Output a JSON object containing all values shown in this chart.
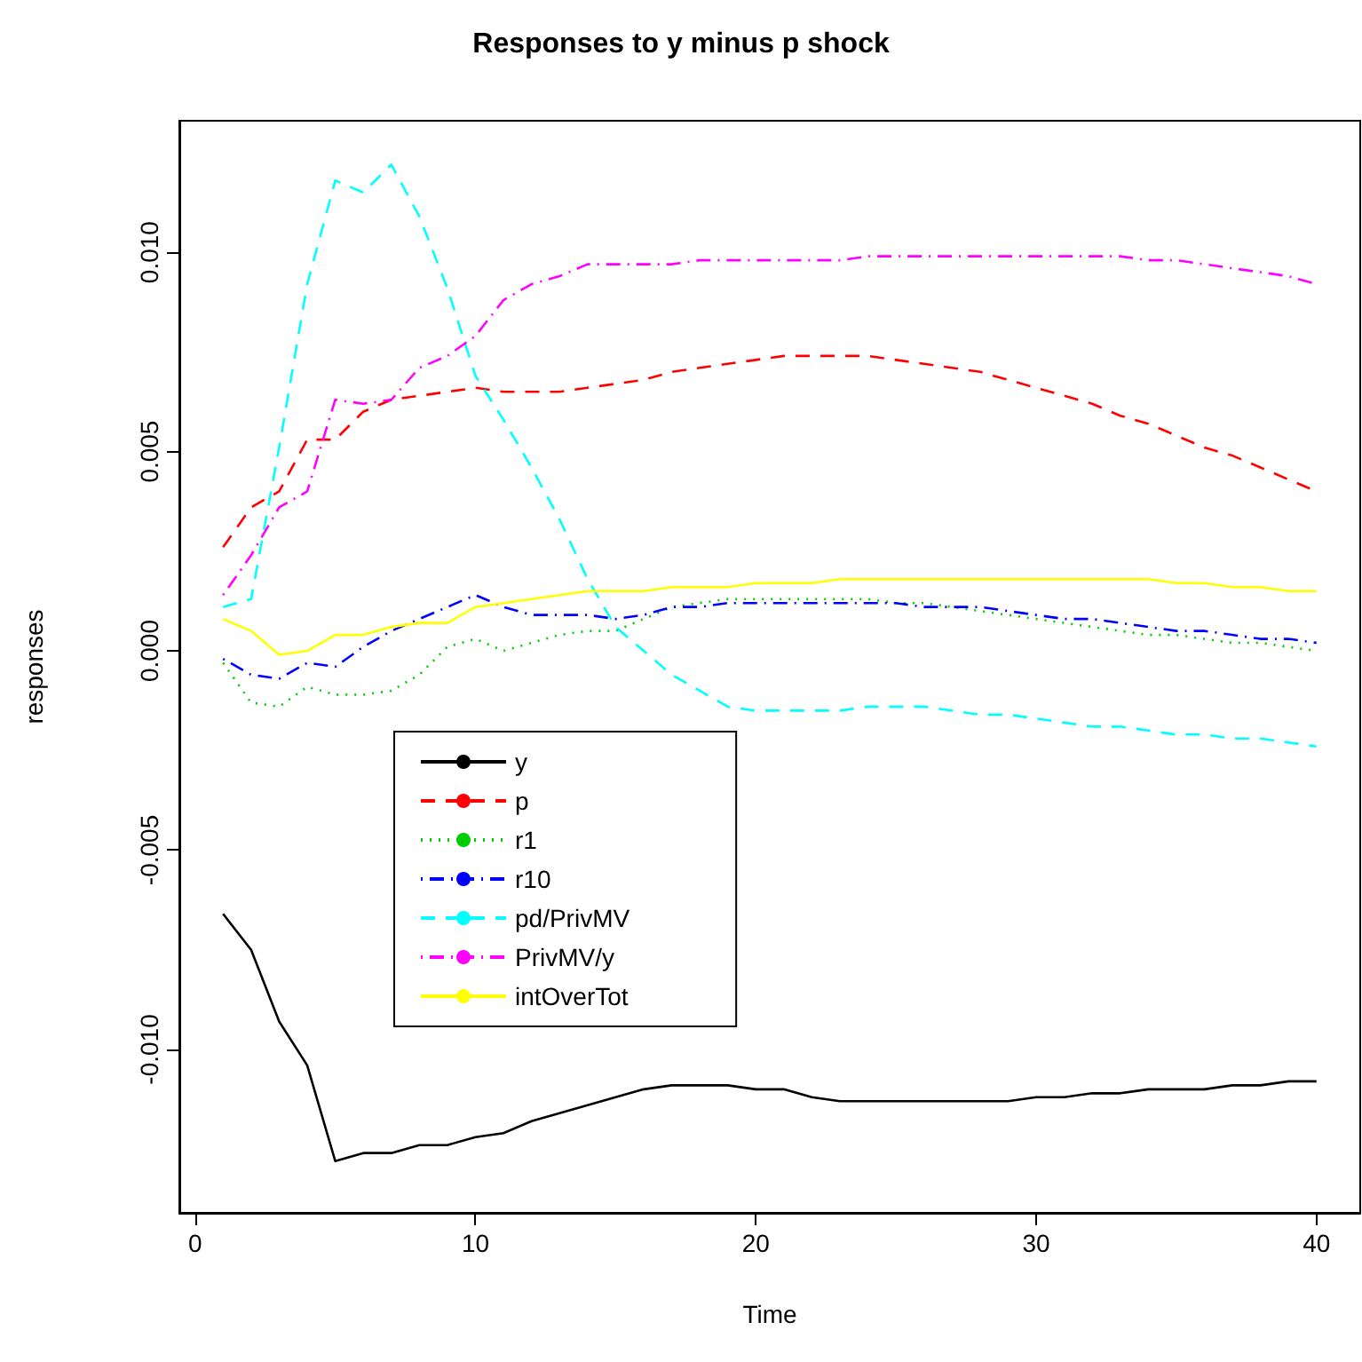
{
  "chart_data": {
    "type": "line",
    "title": "Responses to y minus p shock",
    "xlabel": "Time",
    "ylabel": "responses",
    "x": [
      1,
      2,
      3,
      4,
      5,
      6,
      7,
      8,
      9,
      10,
      11,
      12,
      13,
      14,
      15,
      16,
      17,
      18,
      19,
      20,
      21,
      22,
      23,
      24,
      25,
      26,
      27,
      28,
      29,
      30,
      31,
      32,
      33,
      34,
      35,
      36,
      37,
      38,
      39,
      40
    ],
    "xlim": [
      -0.56,
      41.56
    ],
    "xticks": [
      0,
      10,
      20,
      30,
      40
    ],
    "ylim": [
      -0.0141,
      0.0133
    ],
    "yticks": [
      {
        "value": -0.01,
        "label": "-0.010"
      },
      {
        "value": -0.005,
        "label": "-0.005"
      },
      {
        "value": 0,
        "label": "0.000"
      },
      {
        "value": 0.005,
        "label": "0.005"
      },
      {
        "value": 0.01,
        "label": "0.010"
      }
    ],
    "grid": false,
    "legend": "bottom left",
    "marker": "none",
    "series": [
      {
        "name": "y",
        "color": "#000000",
        "line_style": "solid",
        "values": [
          -0.0066,
          -0.0075,
          -0.0093,
          -0.0104,
          -0.0128,
          -0.0126,
          -0.0126,
          -0.0124,
          -0.0124,
          -0.0122,
          -0.0121,
          -0.0118,
          -0.0116,
          -0.0114,
          -0.0112,
          -0.011,
          -0.0109,
          -0.0109,
          -0.0109,
          -0.011,
          -0.011,
          -0.0112,
          -0.0113,
          -0.0113,
          -0.0113,
          -0.0113,
          -0.0113,
          -0.0113,
          -0.0113,
          -0.0112,
          -0.0112,
          -0.0111,
          -0.0111,
          -0.011,
          -0.011,
          -0.011,
          -0.0109,
          -0.0109,
          -0.0108,
          -0.0108
        ]
      },
      {
        "name": "p",
        "color": "#ff0000",
        "line_style": "dashed",
        "values": [
          0.0026,
          0.0036,
          0.004,
          0.0053,
          0.0053,
          0.006,
          0.0063,
          0.0064,
          0.0065,
          0.0066,
          0.0065,
          0.0065,
          0.0065,
          0.0066,
          0.0067,
          0.0068,
          0.007,
          0.0071,
          0.0072,
          0.0073,
          0.0074,
          0.0074,
          0.0074,
          0.0074,
          0.0073,
          0.0072,
          0.0071,
          0.007,
          0.0068,
          0.0066,
          0.0064,
          0.0062,
          0.0059,
          0.0057,
          0.0054,
          0.0051,
          0.0049,
          0.0046,
          0.0043,
          0.004
        ]
      },
      {
        "name": "r1",
        "color": "#00cd00",
        "line_style": "dotted",
        "values": [
          -0.0003,
          -0.0013,
          -0.0014,
          -0.0009,
          -0.0011,
          -0.0011,
          -0.001,
          -0.0006,
          0.0001,
          0.0003,
          0.0,
          0.0002,
          0.0004,
          0.0005,
          0.0005,
          0.0008,
          0.0011,
          0.0012,
          0.0013,
          0.0013,
          0.0013,
          0.0013,
          0.0013,
          0.0013,
          0.0012,
          0.0012,
          0.0011,
          0.001,
          0.0009,
          0.0008,
          0.0007,
          0.0006,
          0.0005,
          0.0004,
          0.0004,
          0.0003,
          0.0002,
          0.0002,
          0.0001,
          0.0
        ]
      },
      {
        "name": "r10",
        "color": "#0000ff",
        "line_style": "dashdot",
        "values": [
          -0.0002,
          -0.0006,
          -0.0007,
          -0.0003,
          -0.0004,
          0.0001,
          0.0005,
          0.0008,
          0.0011,
          0.0014,
          0.0011,
          0.0009,
          0.0009,
          0.0009,
          0.0008,
          0.0009,
          0.0011,
          0.0011,
          0.0012,
          0.0012,
          0.0012,
          0.0012,
          0.0012,
          0.0012,
          0.0012,
          0.0011,
          0.0011,
          0.0011,
          0.001,
          0.0009,
          0.0008,
          0.0008,
          0.0007,
          0.0006,
          0.0005,
          0.0005,
          0.0004,
          0.0003,
          0.0003,
          0.0002
        ]
      },
      {
        "name": "pd/PrivMV",
        "color": "#00ffff",
        "line_style": "dashed",
        "values": [
          0.0011,
          0.0013,
          0.0051,
          0.0092,
          0.0118,
          0.0115,
          0.0122,
          0.0109,
          0.0091,
          0.0069,
          0.0058,
          0.0046,
          0.0033,
          0.0018,
          0.0006,
          0.0,
          -0.0006,
          -0.001,
          -0.0014,
          -0.0015,
          -0.0015,
          -0.0015,
          -0.0015,
          -0.0014,
          -0.0014,
          -0.0014,
          -0.0015,
          -0.0016,
          -0.0016,
          -0.0017,
          -0.0018,
          -0.0019,
          -0.0019,
          -0.002,
          -0.0021,
          -0.0021,
          -0.0022,
          -0.0022,
          -0.0023,
          -0.0024
        ]
      },
      {
        "name": "PrivMV/y",
        "color": "#ff00ff",
        "line_style": "dashdot",
        "values": [
          0.0014,
          0.0024,
          0.0036,
          0.004,
          0.0063,
          0.0062,
          0.0063,
          0.0071,
          0.0074,
          0.0079,
          0.0088,
          0.0092,
          0.0094,
          0.0097,
          0.0097,
          0.0097,
          0.0097,
          0.0098,
          0.0098,
          0.0098,
          0.0098,
          0.0098,
          0.0098,
          0.0099,
          0.0099,
          0.0099,
          0.0099,
          0.0099,
          0.0099,
          0.0099,
          0.0099,
          0.0099,
          0.0099,
          0.0098,
          0.0098,
          0.0097,
          0.0096,
          0.0095,
          0.0094,
          0.0092
        ]
      },
      {
        "name": "intOverTot",
        "color": "#ffff00",
        "line_style": "solid",
        "values": [
          0.0008,
          0.0005,
          -0.0001,
          0.0,
          0.0004,
          0.0004,
          0.0006,
          0.0007,
          0.0007,
          0.0011,
          0.0012,
          0.0013,
          0.0014,
          0.0015,
          0.0015,
          0.0015,
          0.0016,
          0.0016,
          0.0016,
          0.0017,
          0.0017,
          0.0017,
          0.0018,
          0.0018,
          0.0018,
          0.0018,
          0.0018,
          0.0018,
          0.0018,
          0.0018,
          0.0018,
          0.0018,
          0.0018,
          0.0018,
          0.0017,
          0.0017,
          0.0016,
          0.0016,
          0.0015,
          0.0015
        ]
      }
    ]
  }
}
